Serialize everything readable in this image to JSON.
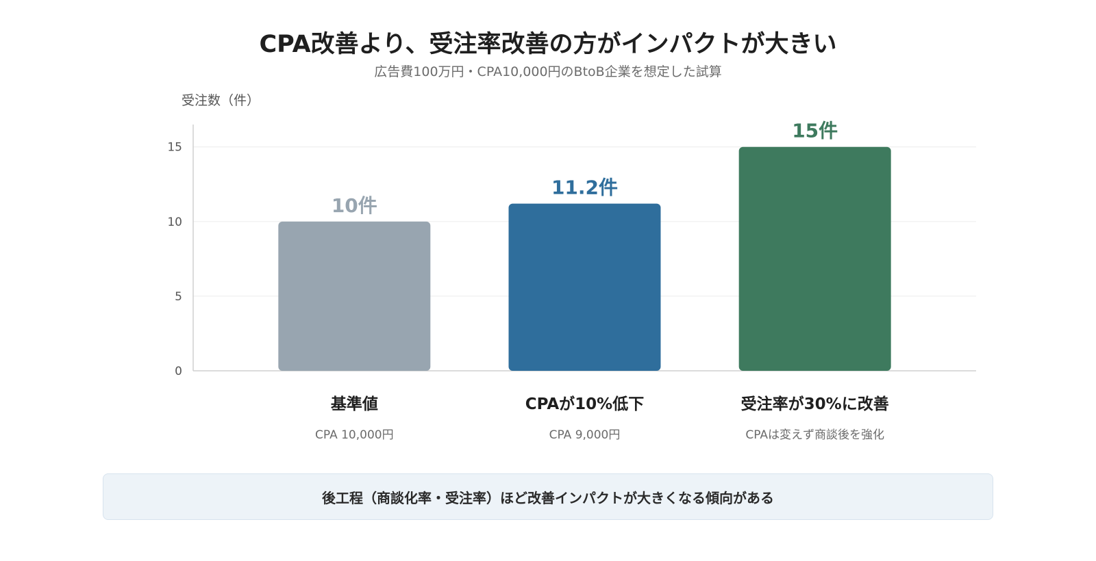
{
  "chart_data": {
    "type": "bar",
    "title": "CPA改善より、受注率改善の方がインパクトが大きい",
    "subtitle": "広告費100万円・CPA10,000円のBtoB企業を想定した試算",
    "ylabel": "受注数（件）",
    "ylim": [
      0,
      16.5
    ],
    "yticks": [
      0,
      5,
      10,
      15
    ],
    "grid": true,
    "categories": [
      "基準値",
      "CPAが10%低下",
      "受注率が30%に改善"
    ],
    "sublabels": [
      "CPA 10,000円",
      "CPA 9,000円",
      "CPAは変えず商談後を強化"
    ],
    "values": [
      10,
      11.2,
      15
    ],
    "value_labels": [
      "10件",
      "11.2件",
      "15件"
    ],
    "colors": [
      "#98a5b0",
      "#2f6e9c",
      "#3e7a5e"
    ],
    "label_colors": [
      "#98a5b0",
      "#2f6e9c",
      "#3e7a5e"
    ]
  },
  "note": "後工程（商談化率・受注率）ほど改善インパクトが大きくなる傾向がある"
}
